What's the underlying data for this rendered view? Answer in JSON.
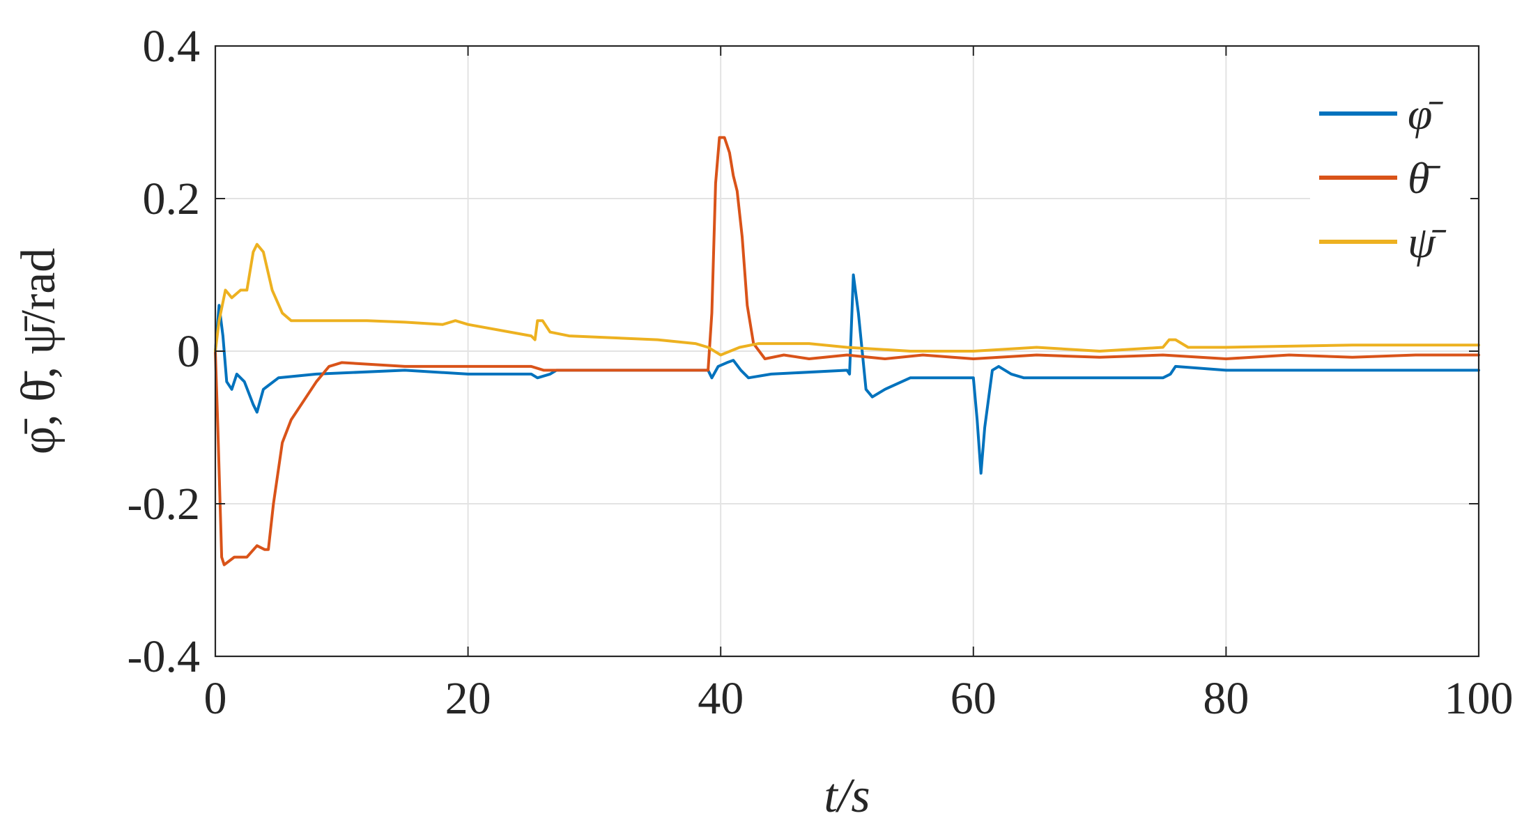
{
  "chart_data": {
    "type": "line",
    "xlabel": "t/s",
    "ylabel": "φ̄, θ̄, ψ̄/rad",
    "xlim": [
      0,
      100
    ],
    "ylim": [
      -0.4,
      0.4
    ],
    "xticks": [
      "0",
      "20",
      "40",
      "60",
      "80",
      "100"
    ],
    "yticks": [
      "0.4",
      "0.2",
      "0",
      "-0.2",
      "-0.4"
    ],
    "grid": true,
    "legend_position": "top-right",
    "series": [
      {
        "name": "φ̄",
        "color": "#0072BD",
        "points": [
          [
            0,
            0
          ],
          [
            0.3,
            0.06
          ],
          [
            0.6,
            0.02
          ],
          [
            0.9,
            -0.04
          ],
          [
            1.3,
            -0.05
          ],
          [
            1.7,
            -0.03
          ],
          [
            2.3,
            -0.04
          ],
          [
            3.0,
            -0.07
          ],
          [
            3.3,
            -0.08
          ],
          [
            3.8,
            -0.05
          ],
          [
            5,
            -0.035
          ],
          [
            8,
            -0.03
          ],
          [
            15,
            -0.025
          ],
          [
            20,
            -0.03
          ],
          [
            25,
            -0.03
          ],
          [
            25.5,
            -0.035
          ],
          [
            26.5,
            -0.03
          ],
          [
            27,
            -0.025
          ],
          [
            35,
            -0.025
          ],
          [
            39,
            -0.025
          ],
          [
            39.3,
            -0.035
          ],
          [
            39.8,
            -0.02
          ],
          [
            40.5,
            -0.015
          ],
          [
            41,
            -0.012
          ],
          [
            41.6,
            -0.025
          ],
          [
            42.2,
            -0.035
          ],
          [
            44,
            -0.03
          ],
          [
            50,
            -0.025
          ],
          [
            50.2,
            -0.03
          ],
          [
            50.5,
            0.1
          ],
          [
            50.9,
            0.05
          ],
          [
            51.5,
            -0.05
          ],
          [
            52,
            -0.06
          ],
          [
            53,
            -0.05
          ],
          [
            55,
            -0.035
          ],
          [
            60,
            -0.035
          ],
          [
            60.3,
            -0.09
          ],
          [
            60.6,
            -0.16
          ],
          [
            60.9,
            -0.1
          ],
          [
            61.5,
            -0.025
          ],
          [
            62,
            -0.02
          ],
          [
            63,
            -0.03
          ],
          [
            64,
            -0.035
          ],
          [
            75,
            -0.035
          ],
          [
            75.6,
            -0.03
          ],
          [
            76,
            -0.02
          ],
          [
            80,
            -0.025
          ],
          [
            90,
            -0.025
          ],
          [
            100,
            -0.025
          ]
        ]
      },
      {
        "name": "θ̄",
        "color": "#D95319",
        "points": [
          [
            0,
            0
          ],
          [
            0.2,
            -0.1
          ],
          [
            0.5,
            -0.27
          ],
          [
            0.7,
            -0.28
          ],
          [
            1.5,
            -0.27
          ],
          [
            2.5,
            -0.27
          ],
          [
            3.3,
            -0.255
          ],
          [
            3.9,
            -0.26
          ],
          [
            4.2,
            -0.26
          ],
          [
            4.6,
            -0.2
          ],
          [
            5.3,
            -0.12
          ],
          [
            6,
            -0.09
          ],
          [
            7,
            -0.065
          ],
          [
            8,
            -0.04
          ],
          [
            9,
            -0.02
          ],
          [
            10,
            -0.015
          ],
          [
            15,
            -0.02
          ],
          [
            20,
            -0.02
          ],
          [
            25,
            -0.02
          ],
          [
            26,
            -0.025
          ],
          [
            30,
            -0.025
          ],
          [
            35,
            -0.025
          ],
          [
            39,
            -0.025
          ],
          [
            39.3,
            0.05
          ],
          [
            39.6,
            0.22
          ],
          [
            39.9,
            0.28
          ],
          [
            40.3,
            0.28
          ],
          [
            40.7,
            0.26
          ],
          [
            41,
            0.23
          ],
          [
            41.3,
            0.21
          ],
          [
            41.7,
            0.15
          ],
          [
            42.1,
            0.06
          ],
          [
            42.6,
            0.01
          ],
          [
            43.5,
            -0.01
          ],
          [
            45,
            -0.005
          ],
          [
            47,
            -0.01
          ],
          [
            50,
            -0.005
          ],
          [
            53,
            -0.01
          ],
          [
            56,
            -0.005
          ],
          [
            60,
            -0.01
          ],
          [
            65,
            -0.005
          ],
          [
            70,
            -0.008
          ],
          [
            75,
            -0.005
          ],
          [
            80,
            -0.01
          ],
          [
            85,
            -0.005
          ],
          [
            90,
            -0.008
          ],
          [
            95,
            -0.005
          ],
          [
            100,
            -0.005
          ]
        ]
      },
      {
        "name": "ψ̄",
        "color": "#EDB120",
        "points": [
          [
            0,
            0
          ],
          [
            0.3,
            0.04
          ],
          [
            0.8,
            0.08
          ],
          [
            1.3,
            0.07
          ],
          [
            2,
            0.08
          ],
          [
            2.5,
            0.08
          ],
          [
            3,
            0.13
          ],
          [
            3.3,
            0.14
          ],
          [
            3.8,
            0.13
          ],
          [
            4.5,
            0.08
          ],
          [
            5.3,
            0.05
          ],
          [
            6,
            0.04
          ],
          [
            8,
            0.04
          ],
          [
            12,
            0.04
          ],
          [
            15,
            0.038
          ],
          [
            18,
            0.035
          ],
          [
            19,
            0.04
          ],
          [
            20,
            0.035
          ],
          [
            25,
            0.02
          ],
          [
            25.3,
            0.015
          ],
          [
            25.5,
            0.04
          ],
          [
            25.9,
            0.04
          ],
          [
            26.5,
            0.025
          ],
          [
            28,
            0.02
          ],
          [
            35,
            0.015
          ],
          [
            38,
            0.01
          ],
          [
            39,
            0.005
          ],
          [
            40,
            -0.005
          ],
          [
            41.5,
            0.005
          ],
          [
            43,
            0.01
          ],
          [
            47,
            0.01
          ],
          [
            50,
            0.005
          ],
          [
            55,
            0.0
          ],
          [
            60,
            0.0
          ],
          [
            65,
            0.005
          ],
          [
            70,
            0.0
          ],
          [
            75,
            0.005
          ],
          [
            75.5,
            0.015
          ],
          [
            76,
            0.015
          ],
          [
            77,
            0.005
          ],
          [
            80,
            0.005
          ],
          [
            90,
            0.008
          ],
          [
            100,
            0.008
          ]
        ]
      }
    ]
  }
}
